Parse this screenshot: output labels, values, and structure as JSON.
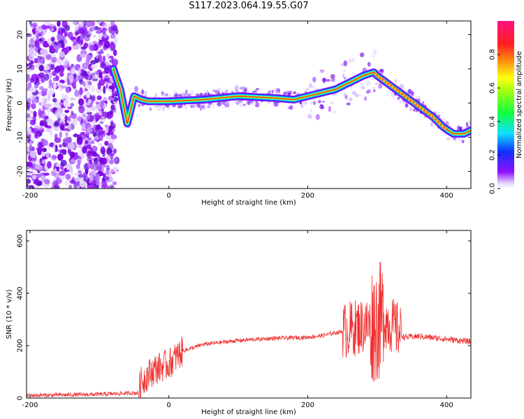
{
  "title": "S117.2023.064.19.55.G07",
  "colors": {
    "snr_line": "#f03030",
    "frame": "#000000",
    "spectrogram_bg": "#ffffff"
  },
  "chart_data": [
    {
      "type": "heatmap",
      "xlabel": "Height of straight line (km)",
      "ylabel": "Frequency (Hz)",
      "xlim": [
        -205,
        435
      ],
      "ylim": [
        -25,
        24
      ],
      "xticks": [
        -200,
        0,
        200,
        400
      ],
      "yticks": [
        -20,
        -10,
        0,
        10,
        20
      ],
      "colorbar": {
        "label": "Normalized spectral amplitude",
        "range": [
          0,
          1
        ],
        "ticks": [
          0.0,
          0.2,
          0.4,
          0.6,
          0.8
        ]
      },
      "ridge": {
        "x": [
          -80,
          -70,
          -60,
          -50,
          -40,
          -30,
          -20,
          0,
          50,
          100,
          150,
          180,
          200,
          220,
          240,
          260,
          280,
          295,
          300,
          320,
          340,
          360,
          380,
          395,
          410,
          425,
          435
        ],
        "y": [
          10,
          4,
          -6,
          2,
          1,
          0.5,
          0.5,
          0.5,
          1,
          2,
          1.5,
          1,
          2,
          3,
          4,
          6,
          8,
          9,
          8,
          5,
          2,
          -1,
          -4,
          -7,
          -9,
          -9,
          -8
        ]
      },
      "grid": false
    },
    {
      "type": "line",
      "xlabel": "Height of straight line (km)",
      "ylabel": "SNR (10 * v/v)",
      "xlim": [
        -205,
        435
      ],
      "ylim": [
        0,
        640
      ],
      "xticks": [
        -200,
        0,
        200,
        400
      ],
      "yticks": [
        0,
        200,
        400,
        600
      ],
      "series": [
        {
          "x": [
            -205,
            -150,
            -100,
            -60,
            -45,
            -40,
            -30,
            -20,
            -10,
            0,
            20,
            50,
            100,
            150,
            200,
            220,
            250,
            270,
            290,
            300,
            310,
            320,
            330,
            335,
            340,
            360,
            400,
            435
          ],
          "y": [
            10,
            12,
            14,
            18,
            20,
            60,
            90,
            110,
            120,
            130,
            180,
            205,
            220,
            228,
            232,
            238,
            255,
            270,
            280,
            290,
            300,
            280,
            260,
            240,
            232,
            236,
            225,
            215
          ]
        }
      ],
      "grid": false
    }
  ]
}
